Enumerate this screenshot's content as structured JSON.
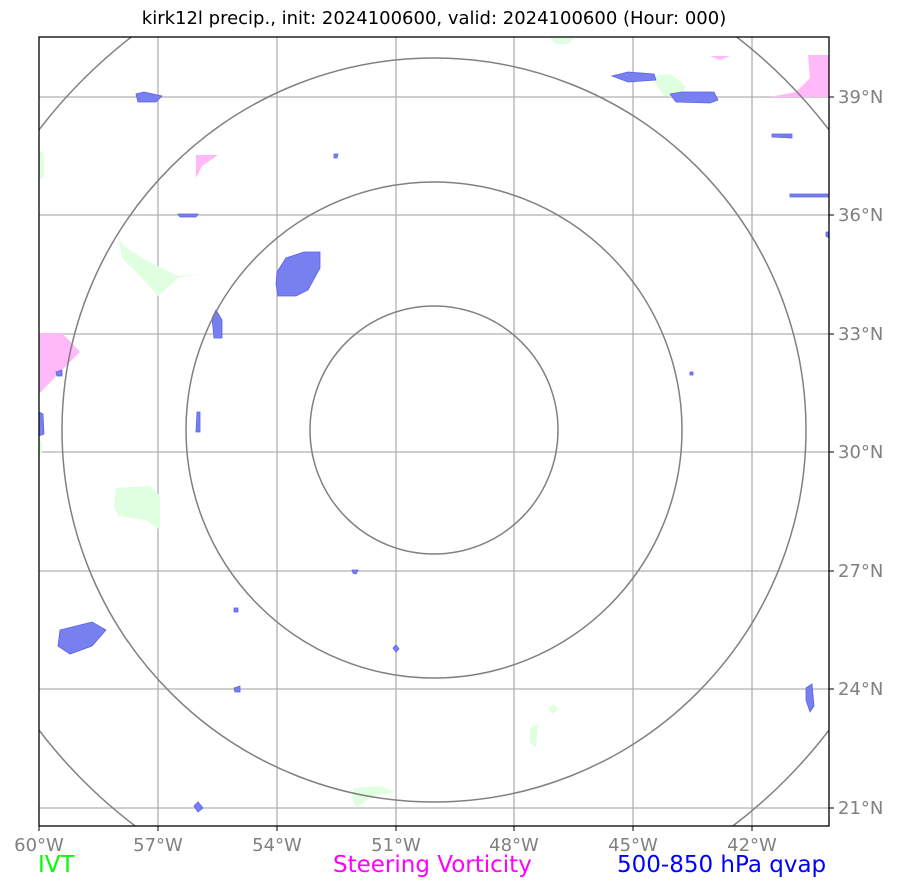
{
  "title": "kirk12l precip., init: 2024100600, valid: 2024100600 (Hour: 000)",
  "lon_ticks": [
    "60°W",
    "57°W",
    "54°W",
    "51°W",
    "48°W",
    "45°W",
    "42°W"
  ],
  "lat_ticks": [
    "39°N",
    "36°N",
    "33°N",
    "30°N",
    "27°N",
    "24°N",
    "21°N"
  ],
  "legend": [
    {
      "label": "IVT",
      "color": "#00ff00"
    },
    {
      "label": "Steering Vorticity",
      "color": "#ff00ff"
    },
    {
      "label": "500-850 hPa qvap",
      "color": "#0000ff"
    }
  ],
  "colors": {
    "ivt_fill": "#e0ffe0",
    "vorticity_fill": "#ffb8f8",
    "qvap_fill": "#7880f0",
    "gridline": "#b0b0b0",
    "range_ring": "#808080",
    "tick_text": "#808080"
  },
  "map_extent": {
    "lon": [
      -60,
      -40
    ],
    "lat": [
      20.3,
      40.5
    ]
  }
}
